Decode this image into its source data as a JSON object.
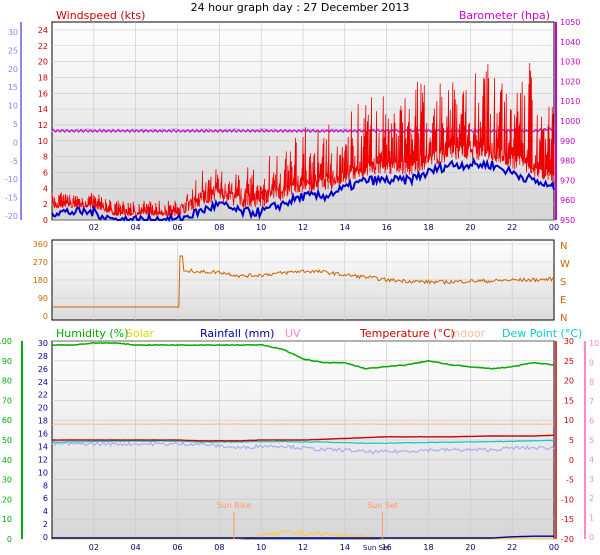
{
  "title": "24 hour graph day : 27 December 2013",
  "chart_data": [
    {
      "panel": "wind-barometer",
      "type": "line",
      "x_ticks": [
        "02",
        "04",
        "06",
        "08",
        "10",
        "12",
        "14",
        "16",
        "18",
        "20",
        "22",
        "00"
      ],
      "x_range_hours": [
        0,
        24
      ],
      "series": [
        {
          "name": "Windspeed (kts)",
          "color": "#ee0000",
          "axis": "left-windspeed"
        },
        {
          "name": "Barometer (hpa)",
          "color": "#cc00cc",
          "axis": "right-barometer"
        }
      ],
      "windspeed_kts_hourly": [
        2,
        2,
        2,
        1,
        1,
        1,
        1,
        5,
        6,
        5,
        6,
        8,
        9,
        9,
        11,
        13,
        13,
        14,
        15,
        16,
        17,
        18,
        17,
        16,
        14
      ],
      "windspeed_avg_kts_hourly": [
        1,
        1,
        1,
        0,
        0,
        0,
        0,
        1,
        2,
        1,
        1,
        2,
        3,
        3,
        4,
        5,
        5,
        5,
        6,
        7,
        7,
        7,
        6,
        5,
        4
      ],
      "barometer_hpa_hourly": [
        995,
        995,
        995,
        995,
        995,
        995,
        995,
        995,
        995,
        995,
        995,
        995,
        995,
        995,
        995,
        995,
        995,
        995,
        995,
        995,
        995,
        995,
        995,
        995,
        996
      ],
      "left_axis_a": {
        "label": "",
        "ticks": [
          "30",
          "25",
          "20",
          "15",
          "10",
          "5",
          "0",
          "-5",
          "-10",
          "-15",
          "-20"
        ],
        "color": "#8888ee"
      },
      "left_axis_windspeed": {
        "label": "Windspeed (kts)",
        "ticks": [
          "24",
          "22",
          "20",
          "18",
          "16",
          "14",
          "12",
          "10",
          "8",
          "6",
          "4",
          "2",
          "0"
        ],
        "range": [
          0,
          25
        ],
        "color": "#cc0000"
      },
      "right_axis_barometer": {
        "label": "Barometer (hpa)",
        "ticks": [
          "1050",
          "1040",
          "1030",
          "1020",
          "1010",
          "1000",
          "990",
          "980",
          "970",
          "960",
          "950"
        ],
        "range": [
          950,
          1050
        ],
        "color": "#cc00cc"
      }
    },
    {
      "panel": "wind-direction",
      "type": "line",
      "x_range_hours": [
        0,
        24
      ],
      "series": [
        {
          "name": "Wind direction",
          "color": "#cc6600"
        }
      ],
      "direction_deg_hourly": [
        45,
        45,
        45,
        45,
        45,
        45,
        45,
        220,
        220,
        200,
        205,
        215,
        225,
        220,
        205,
        195,
        180,
        175,
        170,
        170,
        175,
        175,
        180,
        180,
        185
      ],
      "left_axis": {
        "ticks": [
          "360",
          "270",
          "180",
          "90",
          "0"
        ],
        "range": [
          0,
          360
        ],
        "color": "#cc6600"
      },
      "right_axis": {
        "ticks": [
          "N",
          "W",
          "S",
          "E",
          "N"
        ],
        "color": "#cc6600"
      }
    },
    {
      "panel": "temperature-humidity",
      "type": "line",
      "x_ticks": [
        "02",
        "04",
        "06",
        "08",
        "10",
        "12",
        "14",
        "Sun Set",
        "16",
        "18",
        "20",
        "22",
        "00"
      ],
      "x_range_hours": [
        0,
        24
      ],
      "legend": [
        {
          "label": "Humidity (%)",
          "color": "#00aa00"
        },
        {
          "label": "Solar",
          "color": "#dddd00"
        },
        {
          "label": "Rainfall (mm)",
          "color": "#000099"
        },
        {
          "label": "UV",
          "color": "#ff88cc"
        },
        {
          "label": "Temperature (°C)",
          "color": "#cc0000"
        },
        {
          "label": "Indoor",
          "color": "#ffbb99"
        },
        {
          "label": "Dew Point (°C)",
          "color": "#00cccc"
        }
      ],
      "humidity_pct_hourly": [
        98,
        98,
        99,
        99,
        98,
        98,
        98,
        98,
        98,
        98,
        98,
        96,
        91,
        89,
        89,
        86,
        87,
        88,
        90,
        88,
        87,
        86,
        87,
        89,
        88
      ],
      "temperature_c_hourly": [
        5,
        5,
        5,
        5,
        5,
        5,
        5,
        4.8,
        4.8,
        4.8,
        5,
        5,
        5,
        5.2,
        5.4,
        5.6,
        5.8,
        5.8,
        5.8,
        5.8,
        5.9,
        6,
        6,
        6,
        6.2
      ],
      "dewpoint_c_hourly": [
        4.5,
        4.5,
        4.6,
        4.7,
        4.7,
        4.7,
        4.7,
        4.5,
        4.5,
        4.5,
        4.6,
        4.6,
        4.5,
        4.5,
        4.3,
        4.2,
        4.2,
        4.3,
        4.4,
        4.4,
        4.5,
        4.6,
        4.7,
        4.8,
        4.9
      ],
      "windchill_c_hourly": [
        4,
        4,
        4,
        4,
        4,
        4,
        4,
        4,
        3.5,
        3,
        3.5,
        3.5,
        3,
        2.5,
        2.5,
        2,
        2,
        2.2,
        2.5,
        2.5,
        2.5,
        2.5,
        3,
        3,
        3
      ],
      "indoor_c_hourly": [
        9,
        9,
        9,
        9,
        9,
        9,
        9,
        9,
        9,
        9,
        9,
        9,
        9,
        9,
        9,
        9,
        9,
        9,
        9,
        9,
        9,
        9,
        9,
        9,
        9
      ],
      "solar_hourly": [
        0,
        0,
        0,
        0,
        0,
        0,
        0,
        0,
        0,
        0,
        0.3,
        0.5,
        0.5,
        0.4,
        0.3,
        0.2,
        0,
        0,
        0,
        0,
        0,
        0,
        0,
        0,
        0
      ],
      "rainfall_mm_hourly": [
        0,
        0,
        0,
        0,
        0,
        0,
        0,
        0,
        0,
        0,
        0,
        0,
        0,
        0,
        0,
        0,
        0,
        0,
        0,
        0,
        0,
        0,
        0.2,
        0.3,
        0.3
      ],
      "sun_rise_hour": 8.7,
      "sun_set_hour": 15.8,
      "annotations": [
        {
          "label": "Sun Rise"
        },
        {
          "label": "Sun Set"
        }
      ],
      "left_axis_humidity": {
        "ticks": [
          "100",
          "90",
          "80",
          "70",
          "60",
          "50",
          "40",
          "30",
          "20",
          "10",
          "0"
        ],
        "range": [
          0,
          100
        ],
        "color": "#00aa00"
      },
      "left_axis_rainfall": {
        "ticks": [
          "30",
          "28",
          "26",
          "24",
          "22",
          "20",
          "18",
          "16",
          "14",
          "12",
          "10",
          "8",
          "6",
          "4",
          "2",
          "0"
        ],
        "color": "#000099"
      },
      "right_axis_temperature": {
        "ticks": [
          "30",
          "25",
          "20",
          "15",
          "10",
          "5",
          "0",
          "-5",
          "-10",
          "-15",
          "-20"
        ],
        "range": [
          -20,
          30
        ],
        "color": "#cc0000"
      },
      "right_axis_uv": {
        "ticks": [
          "10",
          "9",
          "8",
          "7",
          "6",
          "5",
          "4",
          "3",
          "2",
          "1",
          "0"
        ],
        "color": "#ff88cc"
      }
    }
  ]
}
